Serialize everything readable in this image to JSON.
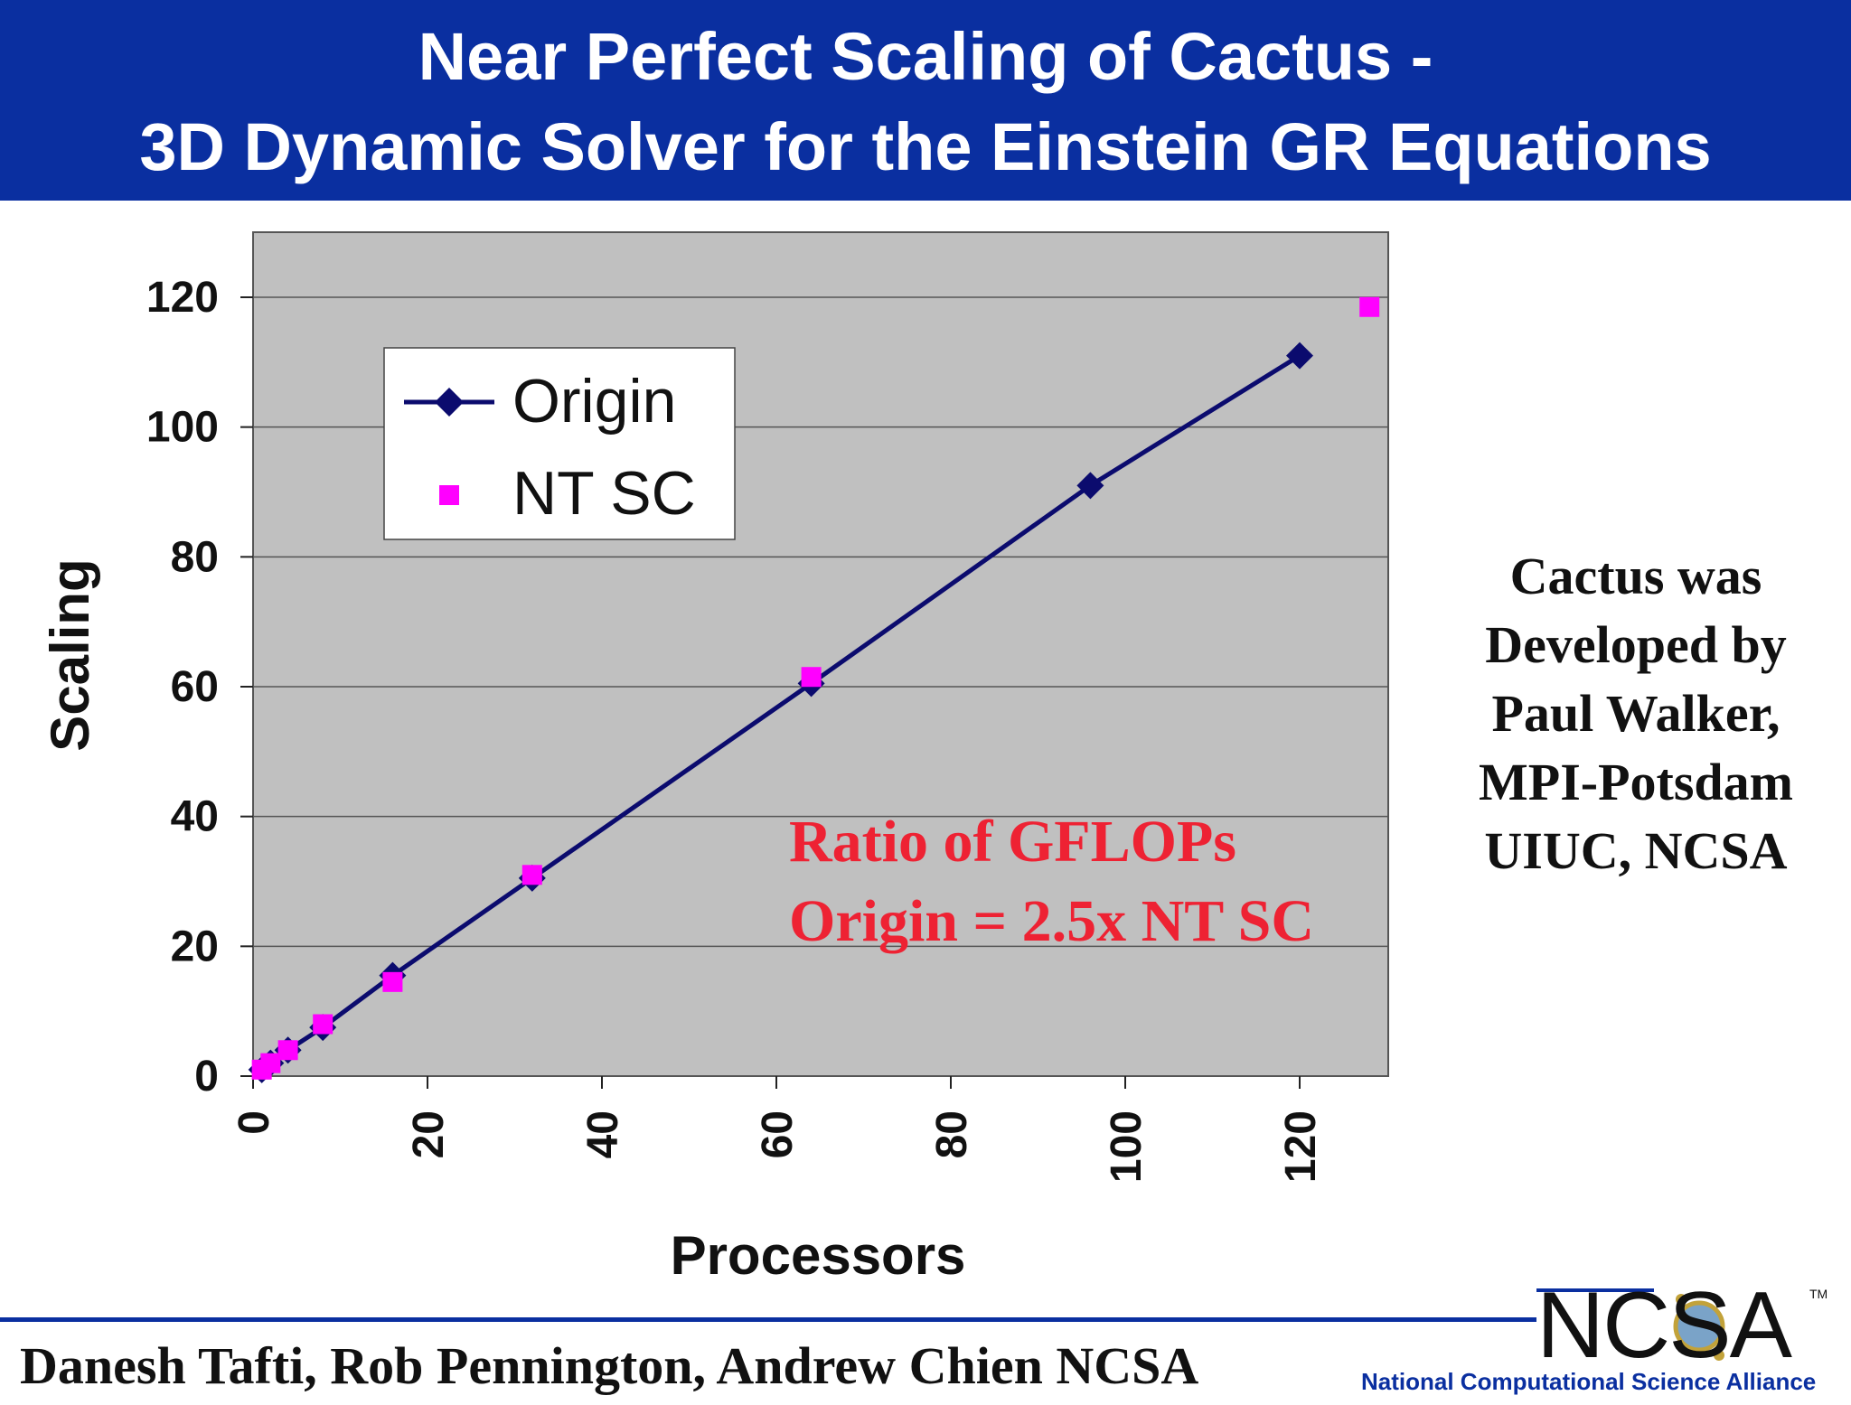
{
  "title": {
    "line1": "Near Perfect Scaling of Cactus -",
    "line2": "3D Dynamic Solver for the Einstein GR Equations"
  },
  "chart_data": {
    "type": "scatter",
    "xlabel": "Processors",
    "ylabel": "Scaling",
    "xlim": [
      0,
      130
    ],
    "ylim": [
      0,
      120
    ],
    "x_ticks": [
      0,
      20,
      40,
      60,
      80,
      100,
      120
    ],
    "y_ticks": [
      0,
      20,
      40,
      60,
      80,
      100,
      120
    ],
    "grid": "horizontal",
    "legend_position": "top-left",
    "series": [
      {
        "name": "Origin",
        "style": "line-diamond",
        "color": "#0b0b6e",
        "points": [
          [
            1,
            1
          ],
          [
            2,
            2
          ],
          [
            4,
            4
          ],
          [
            8,
            7.5
          ],
          [
            16,
            15.5
          ],
          [
            32,
            30.5
          ],
          [
            64,
            60.5
          ],
          [
            96,
            91
          ],
          [
            120,
            111
          ]
        ]
      },
      {
        "name": "NT SC",
        "style": "square",
        "color": "#ff00ff",
        "points": [
          [
            1,
            1
          ],
          [
            2,
            2
          ],
          [
            4,
            4
          ],
          [
            8,
            8
          ],
          [
            16,
            14.5
          ],
          [
            32,
            31
          ],
          [
            64,
            61.5
          ],
          [
            128,
            118.5
          ]
        ]
      }
    ],
    "annotation": {
      "lines": [
        "Ratio of GFLOPs",
        "Origin = 2.5x NT SC"
      ],
      "color": "#ee2233"
    },
    "plot_background": "#c0c0c0"
  },
  "side_note": {
    "lines": [
      "Cactus was",
      "Developed by",
      "Paul Walker,",
      "MPI-Potsdam",
      "UIUC, NCSA"
    ]
  },
  "footer": {
    "authors": "Danesh Tafti, Rob Pennington, Andrew Chien NCSA",
    "logo_text": "NCSA",
    "logo_tm": "TM",
    "org_name": "National Computational Science Alliance"
  },
  "colors": {
    "banner": "#0a2fa0",
    "footer_rule": "#0a2fa0"
  }
}
